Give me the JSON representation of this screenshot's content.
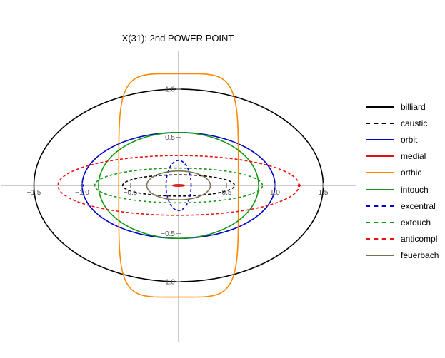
{
  "chart_data": {
    "type": "line",
    "title": "X(31): 2nd POWER POINT",
    "xlabel": "",
    "ylabel": "",
    "xlim": [
      -1.85,
      1.85
    ],
    "ylim": [
      -1.18,
      1.18
    ],
    "x_ticks": [
      {
        "value": -1.5,
        "label": "−1.5"
      },
      {
        "value": -1.0,
        "label": "−1.0"
      },
      {
        "value": -0.5,
        "label": "−0.5"
      },
      {
        "value": 0.5,
        "label": "0.5"
      },
      {
        "value": 1.0,
        "label": "1.0"
      },
      {
        "value": 1.5,
        "label": "1.5"
      }
    ],
    "y_ticks": [
      {
        "value": 1.0,
        "label": "1.0"
      },
      {
        "value": 0.5,
        "label": "0.5"
      },
      {
        "value": -0.5,
        "label": "−0.5"
      },
      {
        "value": -1.0,
        "label": "−1.0"
      }
    ],
    "grid": false,
    "legend_position": "right",
    "series": [
      {
        "name": "billiard",
        "shape": "ellipse",
        "color": "#000000",
        "dash": "solid",
        "a": 1.5,
        "b": 1.0
      },
      {
        "name": "caustic",
        "shape": "ellipse",
        "color": "#000000",
        "dash": "dashed",
        "a": 0.58,
        "b": 0.11
      },
      {
        "name": "orbit",
        "shape": "ellipse",
        "color": "#0000cc",
        "dash": "solid",
        "a": 1.0,
        "b": 0.55
      },
      {
        "name": "medial",
        "shape": "ellipse",
        "color": "#dd1111",
        "dash": "solid",
        "a": 0.06,
        "b": 0.008
      },
      {
        "name": "orthic",
        "shape": "superellipse",
        "color": "#ff8800",
        "dash": "solid",
        "a": 0.62,
        "b": 1.16,
        "n": 5.0
      },
      {
        "name": "intouch",
        "shape": "ellipse",
        "color": "#119911",
        "dash": "solid",
        "a": 0.83,
        "b": 0.55
      },
      {
        "name": "excentral",
        "shape": "ellipse",
        "color": "#0000cc",
        "dash": "dashed",
        "a": 0.13,
        "b": 0.26
      },
      {
        "name": "extouch",
        "shape": "ellipse",
        "color": "#119911",
        "dash": "dashed",
        "a": 0.87,
        "b": 0.18
      },
      {
        "name": "anticompl",
        "shape": "ellipse",
        "color": "#ee1111",
        "dash": "dashed",
        "a": 1.25,
        "b": 0.31
      },
      {
        "name": "feuerbach",
        "shape": "ellipse",
        "color": "#7a7150",
        "dash": "solid",
        "a": 0.33,
        "b": 0.15
      }
    ]
  }
}
